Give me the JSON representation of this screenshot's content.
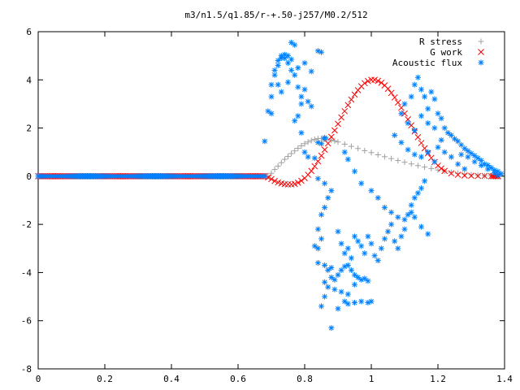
{
  "chart_data": {
    "type": "scatter",
    "title": "m3/n1.5/q1.85/r-+.50-j257/M0.2/512",
    "xlabel": "",
    "ylabel": "",
    "xlim": [
      0,
      1.4
    ],
    "ylim": [
      -8,
      6
    ],
    "xticks": [
      "0",
      "0.2",
      "0.4",
      "0.6",
      "0.8",
      "1",
      "1.2",
      "1.4"
    ],
    "yticks": [
      "-8",
      "-6",
      "-4",
      "-2",
      "0",
      "2",
      "4",
      "6"
    ],
    "grid": false,
    "legend_position": "top-right",
    "series": [
      {
        "name": "R stress",
        "marker": "+",
        "color": "#a0a0a0",
        "points": [
          [
            0.0,
            0
          ],
          [
            0.1,
            0
          ],
          [
            0.2,
            0
          ],
          [
            0.3,
            0
          ],
          [
            0.4,
            0
          ],
          [
            0.5,
            0
          ],
          [
            0.6,
            0
          ],
          [
            0.68,
            0
          ],
          [
            0.69,
            0.0
          ],
          [
            0.7,
            0.12
          ],
          [
            0.71,
            0.28
          ],
          [
            0.72,
            0.42
          ],
          [
            0.73,
            0.56
          ],
          [
            0.74,
            0.7
          ],
          [
            0.75,
            0.82
          ],
          [
            0.76,
            0.94
          ],
          [
            0.77,
            1.05
          ],
          [
            0.78,
            1.16
          ],
          [
            0.79,
            1.26
          ],
          [
            0.8,
            1.35
          ],
          [
            0.81,
            1.42
          ],
          [
            0.82,
            1.48
          ],
          [
            0.83,
            1.53
          ],
          [
            0.84,
            1.56
          ],
          [
            0.85,
            1.57
          ],
          [
            0.86,
            1.56
          ],
          [
            0.87,
            1.54
          ],
          [
            0.88,
            1.5
          ],
          [
            0.89,
            1.46
          ],
          [
            0.9,
            1.42
          ],
          [
            0.92,
            1.33
          ],
          [
            0.94,
            1.24
          ],
          [
            0.96,
            1.15
          ],
          [
            0.98,
            1.06
          ],
          [
            1.0,
            0.98
          ],
          [
            1.02,
            0.89
          ],
          [
            1.04,
            0.81
          ],
          [
            1.06,
            0.73
          ],
          [
            1.08,
            0.65
          ],
          [
            1.1,
            0.58
          ],
          [
            1.12,
            0.51
          ],
          [
            1.14,
            0.44
          ],
          [
            1.16,
            0.38
          ],
          [
            1.18,
            0.32
          ],
          [
            1.2,
            0.26
          ],
          [
            1.22,
            0.21
          ],
          [
            1.24,
            0.16
          ],
          [
            1.26,
            0.12
          ],
          [
            1.28,
            0.09
          ],
          [
            1.3,
            0.06
          ],
          [
            1.32,
            0.04
          ],
          [
            1.34,
            0.02
          ],
          [
            1.36,
            0.01
          ],
          [
            1.38,
            0.0
          ]
        ]
      },
      {
        "name": "G work",
        "marker": "x",
        "color": "#ff0000",
        "points": [
          [
            0.0,
            0
          ],
          [
            0.1,
            0
          ],
          [
            0.2,
            0
          ],
          [
            0.3,
            0
          ],
          [
            0.4,
            0
          ],
          [
            0.5,
            0
          ],
          [
            0.6,
            0
          ],
          [
            0.68,
            0
          ],
          [
            0.69,
            -0.05
          ],
          [
            0.7,
            -0.12
          ],
          [
            0.71,
            -0.2
          ],
          [
            0.72,
            -0.26
          ],
          [
            0.73,
            -0.3
          ],
          [
            0.74,
            -0.33
          ],
          [
            0.75,
            -0.34
          ],
          [
            0.76,
            -0.34
          ],
          [
            0.77,
            -0.32
          ],
          [
            0.78,
            -0.27
          ],
          [
            0.79,
            -0.19
          ],
          [
            0.8,
            -0.08
          ],
          [
            0.81,
            0.06
          ],
          [
            0.82,
            0.22
          ],
          [
            0.83,
            0.41
          ],
          [
            0.84,
            0.62
          ],
          [
            0.85,
            0.85
          ],
          [
            0.86,
            1.1
          ],
          [
            0.87,
            1.36
          ],
          [
            0.88,
            1.63
          ],
          [
            0.89,
            1.9
          ],
          [
            0.9,
            2.17
          ],
          [
            0.91,
            2.44
          ],
          [
            0.92,
            2.7
          ],
          [
            0.93,
            2.95
          ],
          [
            0.94,
            3.18
          ],
          [
            0.95,
            3.39
          ],
          [
            0.96,
            3.57
          ],
          [
            0.97,
            3.73
          ],
          [
            0.98,
            3.86
          ],
          [
            0.99,
            3.95
          ],
          [
            1.0,
            4.0
          ],
          [
            1.01,
            4.0
          ],
          [
            1.02,
            3.96
          ],
          [
            1.03,
            3.88
          ],
          [
            1.04,
            3.77
          ],
          [
            1.05,
            3.63
          ],
          [
            1.06,
            3.46
          ],
          [
            1.07,
            3.27
          ],
          [
            1.08,
            3.06
          ],
          [
            1.09,
            2.84
          ],
          [
            1.1,
            2.6
          ],
          [
            1.11,
            2.36
          ],
          [
            1.12,
            2.11
          ],
          [
            1.13,
            1.86
          ],
          [
            1.14,
            1.62
          ],
          [
            1.15,
            1.38
          ],
          [
            1.16,
            1.16
          ],
          [
            1.17,
            0.95
          ],
          [
            1.18,
            0.76
          ],
          [
            1.19,
            0.59
          ],
          [
            1.2,
            0.44
          ],
          [
            1.21,
            0.32
          ],
          [
            1.22,
            0.22
          ],
          [
            1.24,
            0.12
          ],
          [
            1.26,
            0.06
          ],
          [
            1.28,
            0.03
          ],
          [
            1.3,
            0.02
          ],
          [
            1.32,
            0.01
          ],
          [
            1.34,
            0.01
          ],
          [
            1.36,
            0.0
          ],
          [
            1.38,
            0.0
          ]
        ]
      },
      {
        "name": "Acoustic flux",
        "marker": "*",
        "color": "#0080ff",
        "points": [
          [
            0.0,
            0
          ],
          [
            0.1,
            0
          ],
          [
            0.2,
            0
          ],
          [
            0.3,
            0
          ],
          [
            0.4,
            0
          ],
          [
            0.5,
            0
          ],
          [
            0.6,
            0
          ],
          [
            0.68,
            0
          ],
          [
            0.68,
            1.45
          ],
          [
            0.69,
            2.7
          ],
          [
            0.7,
            3.3
          ],
          [
            0.7,
            3.8
          ],
          [
            0.71,
            4.2
          ],
          [
            0.71,
            4.4
          ],
          [
            0.72,
            4.6
          ],
          [
            0.72,
            4.8
          ],
          [
            0.73,
            4.9
          ],
          [
            0.73,
            5.0
          ],
          [
            0.74,
            4.9
          ],
          [
            0.75,
            4.7
          ],
          [
            0.76,
            4.4
          ],
          [
            0.77,
            4.2
          ],
          [
            0.78,
            3.7
          ],
          [
            0.79,
            3.0
          ],
          [
            0.75,
            5.0
          ],
          [
            0.76,
            4.85
          ],
          [
            0.74,
            5.05
          ],
          [
            0.7,
            2.6
          ],
          [
            0.72,
            3.8
          ],
          [
            0.73,
            3.5
          ],
          [
            0.75,
            3.9
          ],
          [
            0.76,
            5.55
          ],
          [
            0.77,
            5.45
          ],
          [
            0.78,
            4.5
          ],
          [
            0.8,
            4.7
          ],
          [
            0.82,
            4.35
          ],
          [
            0.79,
            3.3
          ],
          [
            0.8,
            3.6
          ],
          [
            0.81,
            3.1
          ],
          [
            0.82,
            2.9
          ],
          [
            0.78,
            2.5
          ],
          [
            0.77,
            2.3
          ],
          [
            0.79,
            1.8
          ],
          [
            0.8,
            1.0
          ],
          [
            0.81,
            0.8
          ],
          [
            0.84,
            5.2
          ],
          [
            0.85,
            5.15
          ],
          [
            0.86,
            1.6
          ],
          [
            0.86,
            1.55
          ],
          [
            0.84,
            1.4
          ],
          [
            0.85,
            1.35
          ],
          [
            0.83,
            0.75
          ],
          [
            0.84,
            -0.1
          ],
          [
            0.86,
            -0.3
          ],
          [
            0.88,
            -0.6
          ],
          [
            0.87,
            -0.9
          ],
          [
            0.86,
            -1.3
          ],
          [
            0.85,
            -1.6
          ],
          [
            0.84,
            -2.2
          ],
          [
            0.85,
            -2.6
          ],
          [
            0.84,
            -3.0
          ],
          [
            0.83,
            -2.9
          ],
          [
            0.84,
            -3.6
          ],
          [
            0.86,
            -3.7
          ],
          [
            0.87,
            -3.9
          ],
          [
            0.88,
            -3.8
          ],
          [
            0.86,
            -4.4
          ],
          [
            0.87,
            -4.6
          ],
          [
            0.88,
            -4.2
          ],
          [
            0.89,
            -4.3
          ],
          [
            0.9,
            -4.1
          ],
          [
            0.91,
            -3.9
          ],
          [
            0.92,
            -3.75
          ],
          [
            0.93,
            -3.7
          ],
          [
            0.94,
            -3.9
          ],
          [
            0.95,
            -4.1
          ],
          [
            0.96,
            -4.2
          ],
          [
            0.97,
            -4.3
          ],
          [
            0.98,
            -4.25
          ],
          [
            0.99,
            -4.35
          ],
          [
            0.85,
            -5.4
          ],
          [
            0.86,
            -5.0
          ],
          [
            0.88,
            -6.3
          ],
          [
            0.9,
            -5.5
          ],
          [
            0.92,
            -5.2
          ],
          [
            0.93,
            -5.3
          ],
          [
            0.95,
            -5.25
          ],
          [
            0.97,
            -5.2
          ],
          [
            0.99,
            -5.25
          ],
          [
            1.0,
            -5.2
          ],
          [
            0.89,
            -4.7
          ],
          [
            0.91,
            -4.8
          ],
          [
            0.93,
            -4.9
          ],
          [
            0.95,
            -4.5
          ],
          [
            0.9,
            -2.3
          ],
          [
            0.91,
            -2.8
          ],
          [
            0.92,
            -3.2
          ],
          [
            0.93,
            -3.0
          ],
          [
            0.94,
            -3.4
          ],
          [
            0.95,
            -2.5
          ],
          [
            0.96,
            -2.7
          ],
          [
            0.97,
            -2.9
          ],
          [
            0.98,
            -3.2
          ],
          [
            0.99,
            -2.5
          ],
          [
            1.0,
            -2.8
          ],
          [
            1.01,
            -3.3
          ],
          [
            1.02,
            -3.5
          ],
          [
            1.03,
            -3.0
          ],
          [
            1.04,
            -2.6
          ],
          [
            1.05,
            -2.3
          ],
          [
            1.06,
            -2.0
          ],
          [
            1.07,
            -2.7
          ],
          [
            1.08,
            -3.0
          ],
          [
            1.09,
            -2.5
          ],
          [
            1.1,
            -2.2
          ],
          [
            1.11,
            -1.6
          ],
          [
            1.12,
            -1.2
          ],
          [
            1.13,
            -0.9
          ],
          [
            1.14,
            -0.7
          ],
          [
            1.15,
            -0.5
          ],
          [
            1.16,
            -0.2
          ],
          [
            0.92,
            1.0
          ],
          [
            0.93,
            0.7
          ],
          [
            0.95,
            0.2
          ],
          [
            0.97,
            -0.3
          ],
          [
            1.0,
            -0.6
          ],
          [
            1.02,
            -0.9
          ],
          [
            1.04,
            -1.3
          ],
          [
            1.06,
            -1.5
          ],
          [
            1.08,
            -1.7
          ],
          [
            1.1,
            -1.8
          ],
          [
            1.12,
            -1.5
          ],
          [
            1.13,
            -1.7
          ],
          [
            1.15,
            -2.1
          ],
          [
            1.17,
            -2.4
          ],
          [
            1.1,
            3.0
          ],
          [
            1.12,
            3.3
          ],
          [
            1.13,
            3.8
          ],
          [
            1.14,
            4.1
          ],
          [
            1.15,
            3.6
          ],
          [
            1.16,
            3.3
          ],
          [
            1.17,
            2.8
          ],
          [
            1.18,
            3.5
          ],
          [
            1.19,
            3.2
          ],
          [
            1.2,
            2.6
          ],
          [
            1.21,
            2.4
          ],
          [
            1.22,
            2.0
          ],
          [
            1.23,
            1.8
          ],
          [
            1.24,
            1.7
          ],
          [
            1.09,
            2.6
          ],
          [
            1.11,
            2.2
          ],
          [
            1.13,
            1.9
          ],
          [
            1.15,
            2.5
          ],
          [
            1.17,
            2.2
          ],
          [
            1.19,
            2.0
          ],
          [
            1.21,
            1.5
          ],
          [
            1.07,
            1.7
          ],
          [
            1.09,
            1.4
          ],
          [
            1.11,
            1.1
          ],
          [
            1.13,
            0.9
          ],
          [
            1.15,
            0.8
          ],
          [
            1.17,
            1.0
          ],
          [
            1.19,
            0.6
          ],
          [
            1.2,
            1.2
          ],
          [
            1.22,
            1.0
          ],
          [
            1.24,
            0.8
          ],
          [
            1.26,
            0.5
          ],
          [
            1.28,
            0.3
          ],
          [
            1.25,
            1.55
          ],
          [
            1.26,
            1.45
          ],
          [
            1.27,
            1.3
          ],
          [
            1.28,
            1.15
          ],
          [
            1.29,
            1.05
          ],
          [
            1.3,
            0.95
          ],
          [
            1.31,
            0.85
          ],
          [
            1.32,
            0.75
          ],
          [
            1.33,
            0.65
          ],
          [
            1.34,
            0.5
          ],
          [
            1.35,
            0.45
          ],
          [
            1.36,
            0.35
          ],
          [
            1.37,
            0.25
          ],
          [
            1.38,
            0.2
          ],
          [
            1.39,
            0.1
          ],
          [
            1.38,
            0.05
          ],
          [
            1.27,
            0.9
          ],
          [
            1.29,
            0.8
          ],
          [
            1.31,
            0.6
          ],
          [
            1.33,
            0.45
          ],
          [
            1.35,
            0.3
          ],
          [
            1.37,
            0.15
          ]
        ]
      }
    ]
  }
}
